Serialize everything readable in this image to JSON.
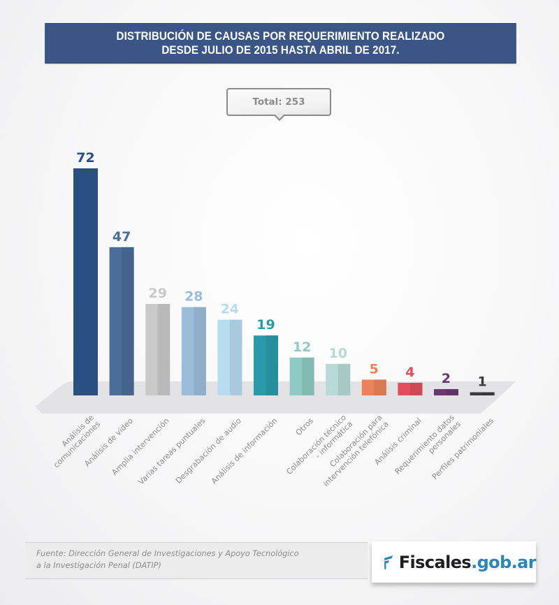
{
  "header": {
    "title_line1": "DISTRIBUCIÓN DE CAUSAS POR REQUERIMIENTO REALIZADO",
    "title_line2": "DESDE JULIO DE 2015 HASTA ABRIL DE 2017."
  },
  "total": {
    "label": "Total: 253"
  },
  "chart_data": {
    "type": "bar",
    "title": "DISTRIBUCIÓN DE CAUSAS POR REQUERIMIENTO REALIZADO DESDE JULIO DE 2015 HASTA ABRIL DE 2017.",
    "xlabel": "",
    "ylabel": "",
    "ylim": [
      0,
      72
    ],
    "grid": false,
    "total": 253,
    "categories": [
      [
        "Análisis de",
        "comunicaciones"
      ],
      [
        "Análisis de video"
      ],
      [
        "Amplia intervención"
      ],
      [
        "Varias tareas puntuales"
      ],
      [
        "Desgrabación de audio"
      ],
      [
        "Análisis de información"
      ],
      [
        "Otros"
      ],
      [
        "Colaboración técnico",
        "- informática"
      ],
      [
        "Colaboración para",
        "intervención telefónica"
      ],
      [
        "Análisis criminal"
      ],
      [
        "Requerimiento datos",
        "personales"
      ],
      [
        "Perfiles patrimoniales"
      ]
    ],
    "values": [
      72,
      47,
      29,
      28,
      24,
      19,
      12,
      10,
      5,
      4,
      2,
      1
    ],
    "colors": [
      "#2c4f82",
      "#4a6d9a",
      "#c9c9c9",
      "#9abddc",
      "#b8dcf0",
      "#2a9aab",
      "#8ecbc2",
      "#b7d9d7",
      "#ec825a",
      "#e14f5c",
      "#6a3773",
      "#3b3b3d"
    ],
    "label_colors": [
      "#2c4f82",
      "#4a6d9a",
      "#c9c9c9",
      "#9abddc",
      "#b8dcf0",
      "#2a9aab",
      "#8ecbc2",
      "#b7d9d7",
      "#ec825a",
      "#e14f5c",
      "#6a3773",
      "#3b3b3d"
    ]
  },
  "footer": {
    "source_line1": "Fuente: Dirección General de Investigaciones y Apoyo Tecnológico",
    "source_line2": "a la Investigación Penal (DATIP)",
    "logo_text_dark": "Fiscales",
    "logo_text_blue": ".gob.ar",
    "logo_icon": "fiscales-f-icon",
    "logo_colors": {
      "dark": "#1d1d1f",
      "blue": "#2a86b5"
    }
  }
}
